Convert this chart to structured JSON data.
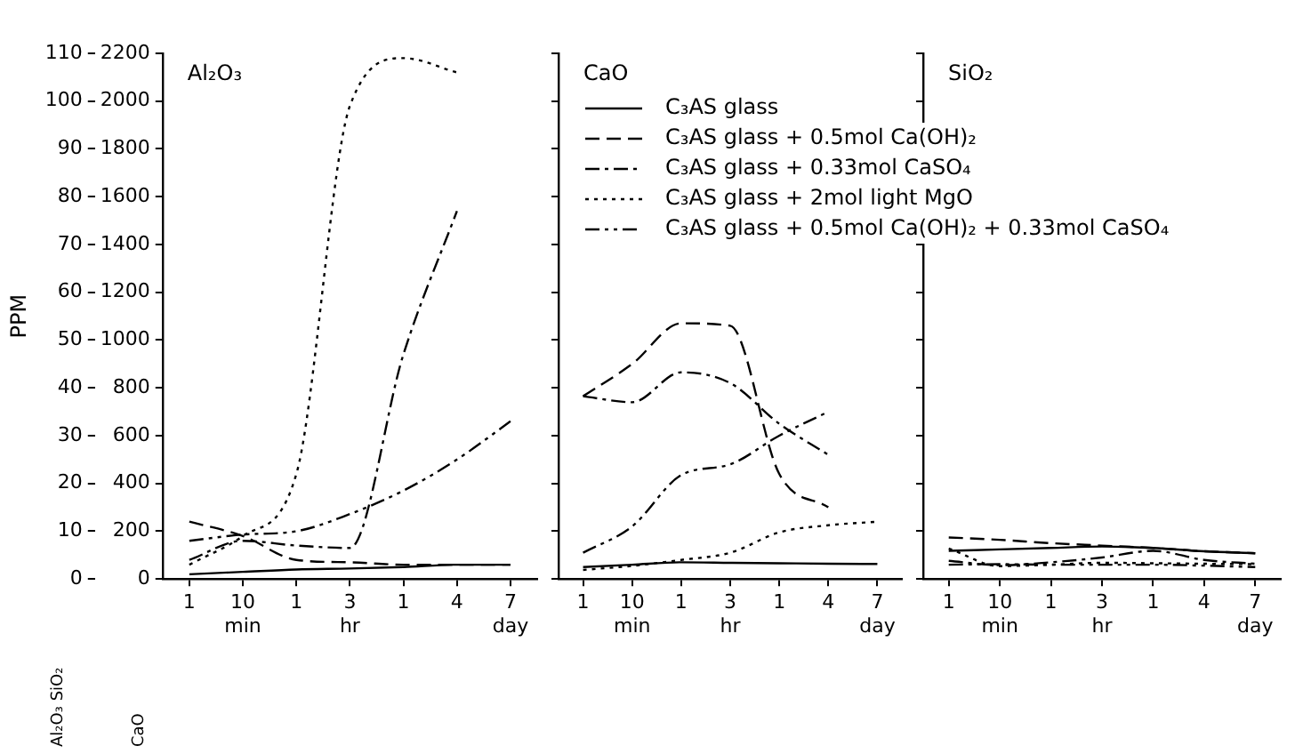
{
  "chart_data": [
    {
      "type": "line",
      "title": "Al₂O₃",
      "ylabel": "PPM",
      "annotations": [
        "Al₂O₃ SiO₂",
        "CaO"
      ],
      "grid": false,
      "marker": "none",
      "categories": [
        "1",
        "10 min",
        "1",
        "3 hr",
        "1",
        "4",
        "7 day"
      ],
      "ylim": [
        0,
        110
      ],
      "yticks": [
        0,
        10,
        20,
        30,
        40,
        50,
        60,
        70,
        80,
        90,
        100,
        110
      ],
      "y2lim": [
        0,
        2200
      ],
      "y2ticks": [
        0,
        200,
        400,
        600,
        800,
        1000,
        1200,
        1400,
        1600,
        1800,
        2000,
        2200
      ],
      "series": [
        {
          "color": "#000000",
          "line_style": "solid",
          "values": [
            1,
            1.5,
            2,
            2.2,
            2.5,
            3,
            3
          ]
        },
        {
          "color": "#000000",
          "line_style": "dashed",
          "values": [
            12,
            9,
            4,
            3.5,
            3,
            3,
            3
          ]
        },
        {
          "color": "#000000",
          "line_style": "dashed",
          "values": [
            4,
            8,
            7,
            6.5,
            47,
            77,
            null
          ]
        },
        {
          "color": "#000000",
          "line_style": "dotted",
          "values": [
            3,
            9,
            22,
            99,
            109,
            106,
            null
          ]
        },
        {
          "color": "#000000",
          "line_style": "dashed",
          "values": [
            8,
            9.3,
            10,
            13.6,
            18.5,
            25,
            33
          ]
        }
      ]
    },
    {
      "type": "line",
      "title": "CaO",
      "grid": false,
      "marker": "none",
      "tick_labels": "x",
      "legend": "top",
      "categories": [
        "1",
        "10 min",
        "1",
        "3 hr",
        "1",
        "4",
        "7 day"
      ],
      "ylim": [
        0,
        2200
      ],
      "yticks": [
        0,
        200,
        400,
        600,
        800,
        1000,
        1200,
        1400,
        1600,
        1800,
        2000,
        2200
      ],
      "series": [
        {
          "name": "C₃AS glass",
          "color": "#000000",
          "line_style": "solid",
          "values": [
            50,
            60,
            70,
            68,
            66,
            64,
            63
          ]
        },
        {
          "name": "C₃AS glass + 0.5mol Ca(OH)₂",
          "color": "#000000",
          "line_style": "dashed",
          "values": [
            765,
            900,
            1070,
            1060,
            440,
            300,
            null
          ]
        },
        {
          "name": "C₃AS glass + 0.33mol CaSO₄",
          "color": "#000000",
          "line_style": "dashed",
          "values": [
            765,
            740,
            865,
            820,
            650,
            520,
            null
          ]
        },
        {
          "name": "C₃AS glass + 2mol light MgO",
          "color": "#000000",
          "line_style": "dotted",
          "values": [
            38,
            55,
            80,
            110,
            195,
            225,
            240
          ]
        },
        {
          "name": "C₃AS glass + 0.5mol Ca(OH)₂ + 0.33mol CaSO₄",
          "color": "#000000",
          "line_style": "dashed",
          "values": [
            110,
            220,
            435,
            480,
            600,
            700,
            null
          ]
        }
      ]
    },
    {
      "type": "line",
      "title": "SiO₂",
      "grid": false,
      "marker": "none",
      "tick_labels": "x",
      "categories": [
        "1",
        "10 min",
        "1",
        "3 hr",
        "1",
        "4",
        "7 day"
      ],
      "ylim": [
        0,
        110
      ],
      "yticks": [
        0,
        10,
        20,
        30,
        40,
        50,
        60,
        70,
        80,
        90,
        100,
        110
      ],
      "series": [
        {
          "color": "#000000",
          "line_style": "solid",
          "values": [
            5.9,
            6.2,
            6.5,
            6.8,
            6.5,
            5.8,
            5.4
          ]
        },
        {
          "color": "#000000",
          "line_style": "dashed",
          "values": [
            8.7,
            8.2,
            7.5,
            7,
            6.5,
            5.8,
            5.4
          ]
        },
        {
          "color": "#000000",
          "line_style": "dashed",
          "values": [
            3.8,
            2.9,
            3.5,
            4.5,
            5.9,
            4,
            3.2
          ]
        },
        {
          "color": "#000000",
          "line_style": "dotted",
          "values": [
            6.4,
            2.7,
            3,
            3.4,
            3.3,
            3.2,
            3.1
          ]
        },
        {
          "color": "#000000",
          "line_style": "dashed",
          "values": [
            3,
            3.1,
            3,
            3,
            3,
            2.8,
            2.5
          ]
        }
      ]
    }
  ]
}
